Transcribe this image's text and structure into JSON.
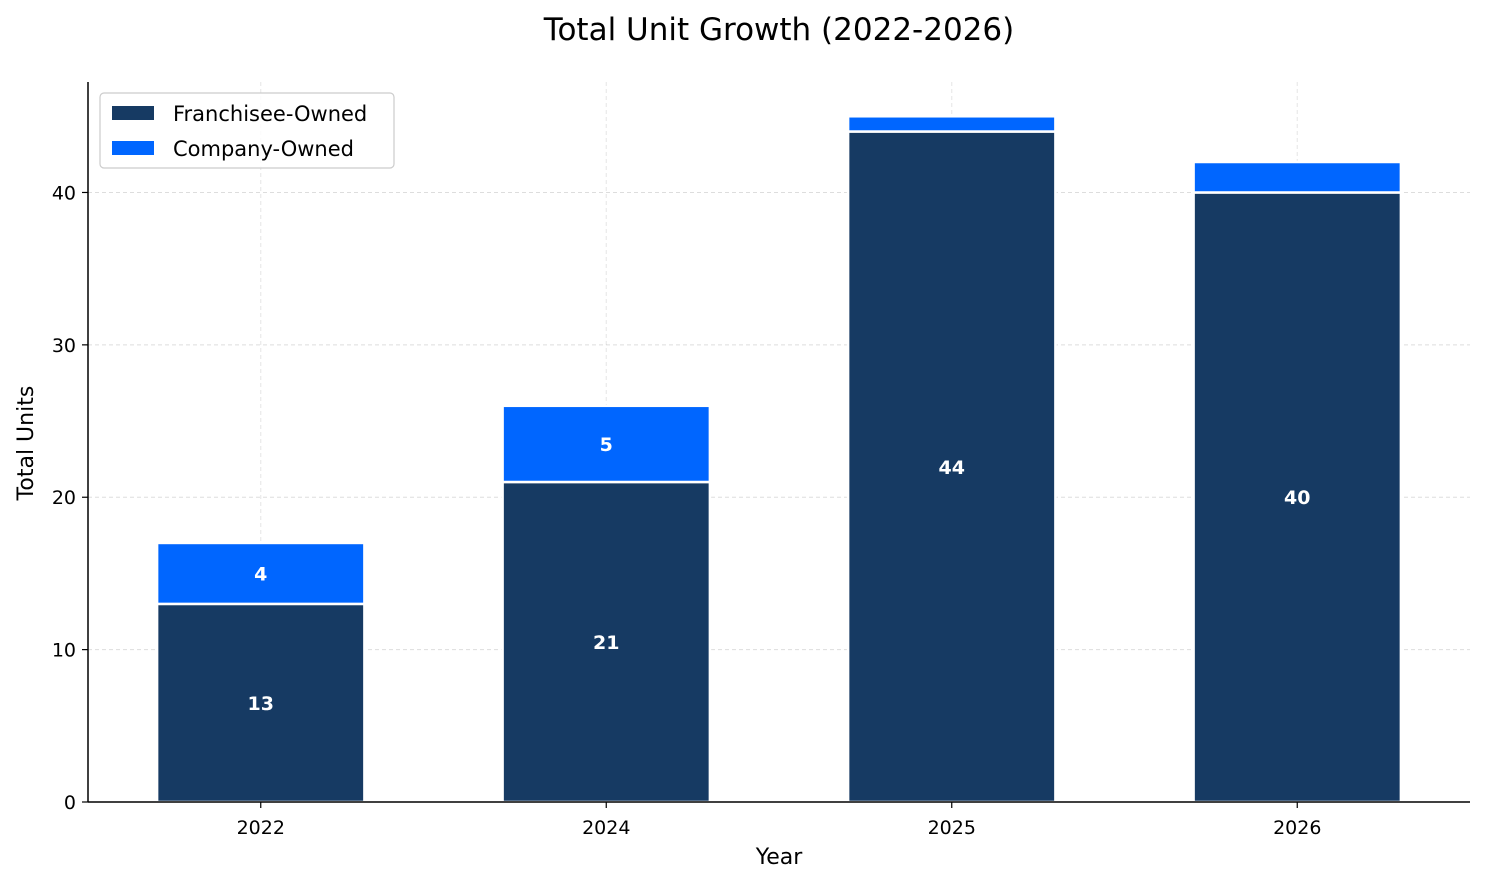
{
  "chart_data": {
    "type": "bar",
    "stacked": true,
    "title": "Total Unit Growth (2022-2026)",
    "xlabel": "Year",
    "ylabel": "Total Units",
    "categories": [
      "2022",
      "2024",
      "2025",
      "2026"
    ],
    "series": [
      {
        "name": "Franchisee-Owned",
        "color": "#163a63",
        "values": [
          13,
          21,
          44,
          40
        ],
        "labels": [
          "13",
          "21",
          "44",
          "40"
        ]
      },
      {
        "name": "Company-Owned",
        "color": "#0066ff",
        "values": [
          4,
          5,
          1,
          2
        ],
        "labels": [
          "4",
          "5",
          "",
          ""
        ]
      }
    ],
    "ylim": [
      0,
      47.25
    ],
    "yticks": [
      0,
      10,
      20,
      30,
      40
    ],
    "grid": true,
    "legend": "top-left"
  }
}
